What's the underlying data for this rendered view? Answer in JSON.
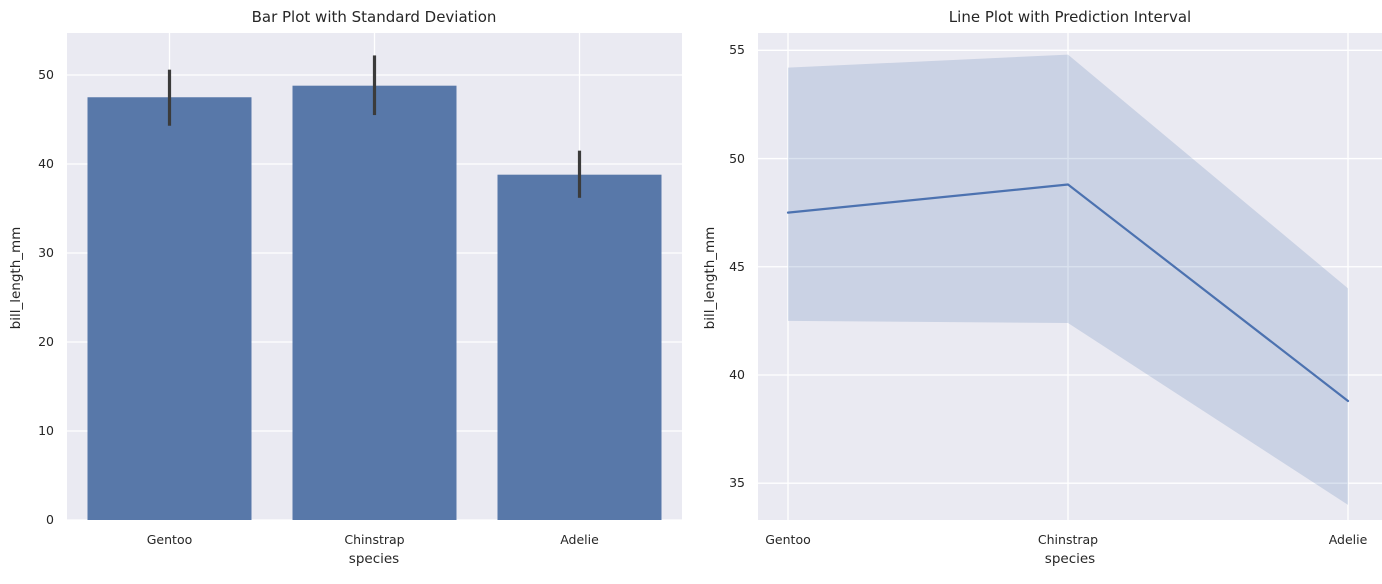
{
  "figure": {
    "background": "#ffffff",
    "description": "Two seaborn-style subplots of penguin bill length by species"
  },
  "palette": {
    "axes_background": "#eaeaf2",
    "grid_color": "#ffffff",
    "bar_fill": "#5878a9",
    "errorbar_color": "#3b3b3b",
    "line_color": "#4c72b0",
    "band_fill": "#4c72b0",
    "band_opacity": 0.2,
    "text_color": "#262626"
  },
  "chart_data": [
    {
      "type": "bar",
      "title": "Bar Plot with Standard Deviation",
      "xlabel": "species",
      "ylabel": "bill_length_mm",
      "categories": [
        "Gentoo",
        "Chinstrap",
        "Adelie"
      ],
      "values": [
        47.5,
        48.8,
        38.8
      ],
      "error_bars": [
        [
          44.3,
          50.6
        ],
        [
          45.5,
          52.2
        ],
        [
          36.2,
          41.5
        ]
      ],
      "yticks": [
        0,
        10,
        20,
        30,
        40,
        50
      ],
      "ylim": [
        0,
        54.72
      ],
      "grid": true,
      "legend": false,
      "style": "seaborn-darkgrid"
    },
    {
      "type": "line",
      "title": "Line Plot with Prediction Interval",
      "xlabel": "species",
      "ylabel": "bill_length_mm",
      "categories": [
        "Gentoo",
        "Chinstrap",
        "Adelie"
      ],
      "values": [
        47.5,
        48.8,
        38.8
      ],
      "band_upper": [
        54.2,
        54.8,
        44.0
      ],
      "band_lower": [
        42.5,
        42.4,
        34.0
      ],
      "yticks": [
        35,
        40,
        45,
        50,
        55
      ],
      "ylim": [
        33.3,
        55.8
      ],
      "grid": true,
      "legend": false,
      "style": "seaborn-darkgrid"
    }
  ]
}
